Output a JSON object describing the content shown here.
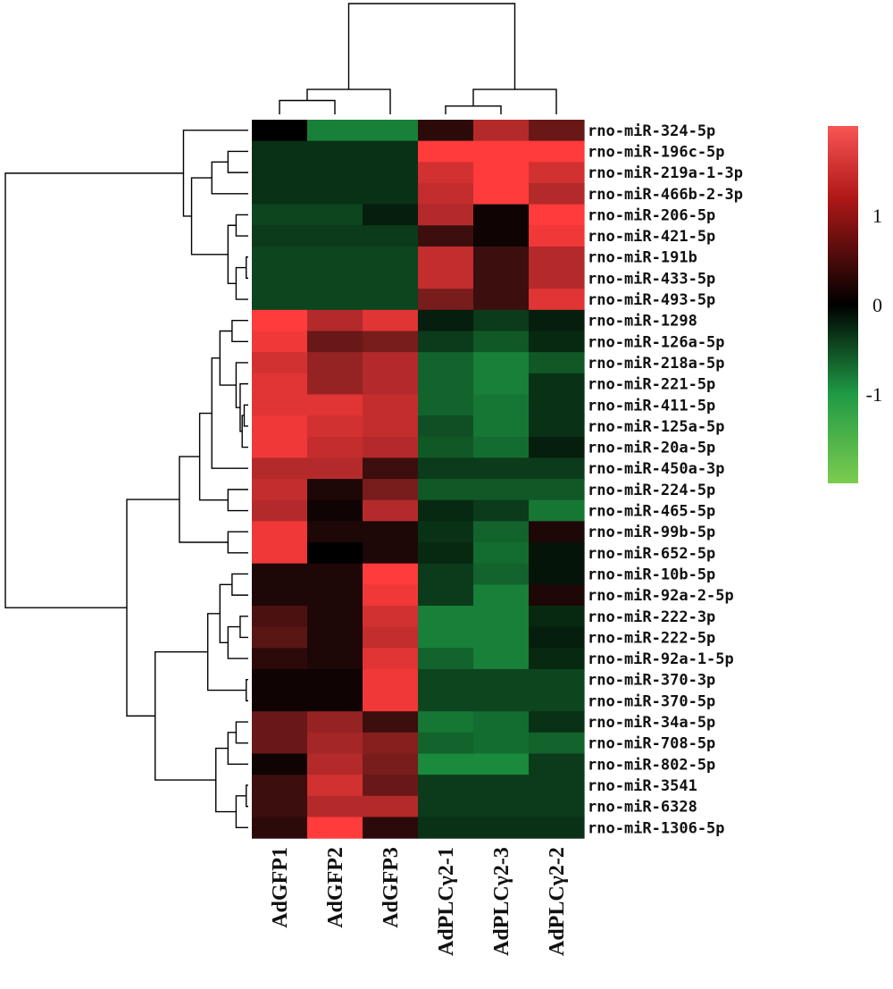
{
  "chart_data": {
    "type": "heatmap",
    "columns": [
      "AdGFP1",
      "AdGFP2",
      "AdGFP3",
      "AdPLCγ2-1",
      "AdPLCγ2-3",
      "AdPLCγ2-2"
    ],
    "rows": [
      "rno-miR-324-5p",
      "rno-miR-196c-5p",
      "rno-miR-219a-1-3p",
      "rno-miR-466b-2-3p",
      "rno-miR-206-5p",
      "rno-miR-421-5p",
      "rno-miR-191b",
      "rno-miR-433-5p",
      "rno-miR-493-5p",
      "rno-miR-1298",
      "rno-miR-126a-5p",
      "rno-miR-218a-5p",
      "rno-miR-221-5p",
      "rno-miR-411-5p",
      "rno-miR-125a-5p",
      "rno-miR-20a-5p",
      "rno-miR-450a-3p",
      "rno-miR-224-5p",
      "rno-miR-465-5p",
      "rno-miR-99b-5p",
      "rno-miR-652-5p",
      "rno-miR-10b-5p",
      "rno-miR-92a-2-5p",
      "rno-miR-222-3p",
      "rno-miR-222-5p",
      "rno-miR-92a-1-5p",
      "rno-miR-370-3p",
      "rno-miR-370-5p",
      "rno-miR-34a-5p",
      "rno-miR-708-5p",
      "rno-miR-802-5p",
      "rno-miR-3541",
      "rno-miR-6328",
      "rno-miR-1306-5p"
    ],
    "values": [
      [
        0.0,
        -1.3,
        -1.3,
        0.3,
        1.2,
        0.7
      ],
      [
        -0.5,
        -0.5,
        -0.5,
        1.7,
        1.7,
        1.7
      ],
      [
        -0.5,
        -0.5,
        -0.5,
        1.4,
        1.7,
        1.4
      ],
      [
        -0.5,
        -0.5,
        -0.5,
        1.3,
        1.7,
        1.2
      ],
      [
        -0.7,
        -0.7,
        -0.3,
        1.2,
        0.1,
        1.7
      ],
      [
        -0.6,
        -0.6,
        -0.6,
        0.4,
        0.1,
        1.6
      ],
      [
        -0.7,
        -0.7,
        -0.7,
        1.3,
        0.4,
        1.2
      ],
      [
        -0.7,
        -0.7,
        -0.7,
        1.3,
        0.4,
        1.2
      ],
      [
        -0.7,
        -0.7,
        -0.7,
        0.8,
        0.4,
        1.5
      ],
      [
        1.7,
        1.2,
        1.5,
        -0.3,
        -0.6,
        -0.3
      ],
      [
        1.6,
        0.7,
        0.8,
        -0.6,
        -0.9,
        -0.4
      ],
      [
        1.4,
        1.0,
        1.2,
        -1.0,
        -1.3,
        -0.9
      ],
      [
        1.5,
        1.0,
        1.2,
        -1.0,
        -1.3,
        -0.5
      ],
      [
        1.5,
        1.5,
        1.3,
        -1.0,
        -1.2,
        -0.5
      ],
      [
        1.6,
        1.4,
        1.3,
        -0.8,
        -1.2,
        -0.5
      ],
      [
        1.6,
        1.3,
        1.2,
        -0.9,
        -1.1,
        -0.3
      ],
      [
        1.2,
        1.2,
        0.4,
        -0.6,
        -0.6,
        -0.6
      ],
      [
        1.3,
        0.2,
        0.8,
        -0.9,
        -0.9,
        -0.9
      ],
      [
        1.2,
        0.1,
        1.2,
        -0.4,
        -0.6,
        -1.2
      ],
      [
        1.6,
        0.2,
        0.2,
        -0.5,
        -1.0,
        0.2
      ],
      [
        1.6,
        0.0,
        0.2,
        -0.4,
        -1.1,
        -0.2
      ],
      [
        0.2,
        0.2,
        1.7,
        -0.6,
        -1.0,
        -0.2
      ],
      [
        0.2,
        0.2,
        1.6,
        -0.6,
        -1.3,
        0.2
      ],
      [
        0.5,
        0.2,
        1.4,
        -1.3,
        -1.3,
        -0.4
      ],
      [
        0.6,
        0.2,
        1.3,
        -1.3,
        -1.3,
        -0.3
      ],
      [
        0.3,
        0.2,
        1.5,
        -1.0,
        -1.3,
        -0.4
      ],
      [
        0.1,
        0.1,
        1.6,
        -0.7,
        -0.7,
        -0.7
      ],
      [
        0.1,
        0.1,
        1.6,
        -0.7,
        -0.7,
        -0.7
      ],
      [
        0.7,
        1.0,
        0.4,
        -1.2,
        -1.1,
        -0.5
      ],
      [
        0.7,
        1.1,
        0.9,
        -1.0,
        -1.1,
        -1.0
      ],
      [
        0.1,
        1.2,
        0.8,
        -1.4,
        -1.4,
        -0.6
      ],
      [
        0.4,
        1.4,
        0.7,
        -0.6,
        -0.6,
        -0.6
      ],
      [
        0.4,
        1.2,
        1.2,
        -0.6,
        -0.6,
        -0.6
      ],
      [
        0.3,
        1.7,
        0.3,
        -0.5,
        -0.5,
        -0.5
      ]
    ],
    "legend": {
      "tick_labels": [
        "1",
        "0",
        "-1"
      ],
      "tick_values": [
        1,
        0,
        -1
      ],
      "range": [
        -2,
        2
      ]
    },
    "colors": {
      "high": "#ff3b3b",
      "mid": "#000000",
      "low": "#1fa84a",
      "legend_top": "#f95555",
      "legend_bottom": "#7ccc4f"
    },
    "col_dendrogram": [
      {
        "left": 0,
        "right": 1,
        "height": 0.5
      },
      {
        "left": 6,
        "right": 2,
        "height": 0.9
      },
      {
        "left": 3,
        "right": 4,
        "height": 0.3
      },
      {
        "left": 8,
        "right": 5,
        "height": 0.9
      },
      {
        "left": 7,
        "right": 9,
        "height": 4.0
      }
    ],
    "row_dendrogram": [
      {
        "left": 1,
        "right": 2,
        "height": 0.5
      },
      {
        "left": 34,
        "right": 3,
        "height": 0.9
      },
      {
        "left": 4,
        "right": 5,
        "height": 0.3
      },
      {
        "left": 6,
        "right": 7,
        "height": 0.05
      },
      {
        "left": 37,
        "right": 8,
        "height": 0.3
      },
      {
        "left": 36,
        "right": 38,
        "height": 0.5
      },
      {
        "left": 35,
        "right": 39,
        "height": 1.4
      },
      {
        "left": 0,
        "right": 40,
        "height": 1.6
      },
      {
        "left": 9,
        "right": 10,
        "height": 0.4
      },
      {
        "left": 13,
        "right": 14,
        "height": 0.1
      },
      {
        "left": 43,
        "right": 15,
        "height": 0.15
      },
      {
        "left": 12,
        "right": 44,
        "height": 0.2
      },
      {
        "left": 11,
        "right": 45,
        "height": 0.3
      },
      {
        "left": 42,
        "right": 46,
        "height": 0.7
      },
      {
        "left": 47,
        "right": 16,
        "height": 0.9
      },
      {
        "left": 17,
        "right": 18,
        "height": 0.5
      },
      {
        "left": 48,
        "right": 49,
        "height": 1.2
      },
      {
        "left": 19,
        "right": 20,
        "height": 0.5
      },
      {
        "left": 50,
        "right": 51,
        "height": 1.7
      },
      {
        "left": 21,
        "right": 22,
        "height": 0.4
      },
      {
        "left": 23,
        "right": 24,
        "height": 0.2
      },
      {
        "left": 54,
        "right": 25,
        "height": 0.5
      },
      {
        "left": 53,
        "right": 55,
        "height": 0.7
      },
      {
        "left": 26,
        "right": 27,
        "height": 0.05
      },
      {
        "left": 56,
        "right": 57,
        "height": 1.0
      },
      {
        "left": 28,
        "right": 29,
        "height": 0.3
      },
      {
        "left": 59,
        "right": 30,
        "height": 0.5
      },
      {
        "left": 31,
        "right": 32,
        "height": 0.05
      },
      {
        "left": 61,
        "right": 33,
        "height": 0.3
      },
      {
        "left": 60,
        "right": 62,
        "height": 0.8
      },
      {
        "left": 58,
        "right": 63,
        "height": 2.3
      },
      {
        "left": 52,
        "right": 64,
        "height": 3.0
      },
      {
        "left": 41,
        "right": 65,
        "height": 6.0
      }
    ]
  }
}
